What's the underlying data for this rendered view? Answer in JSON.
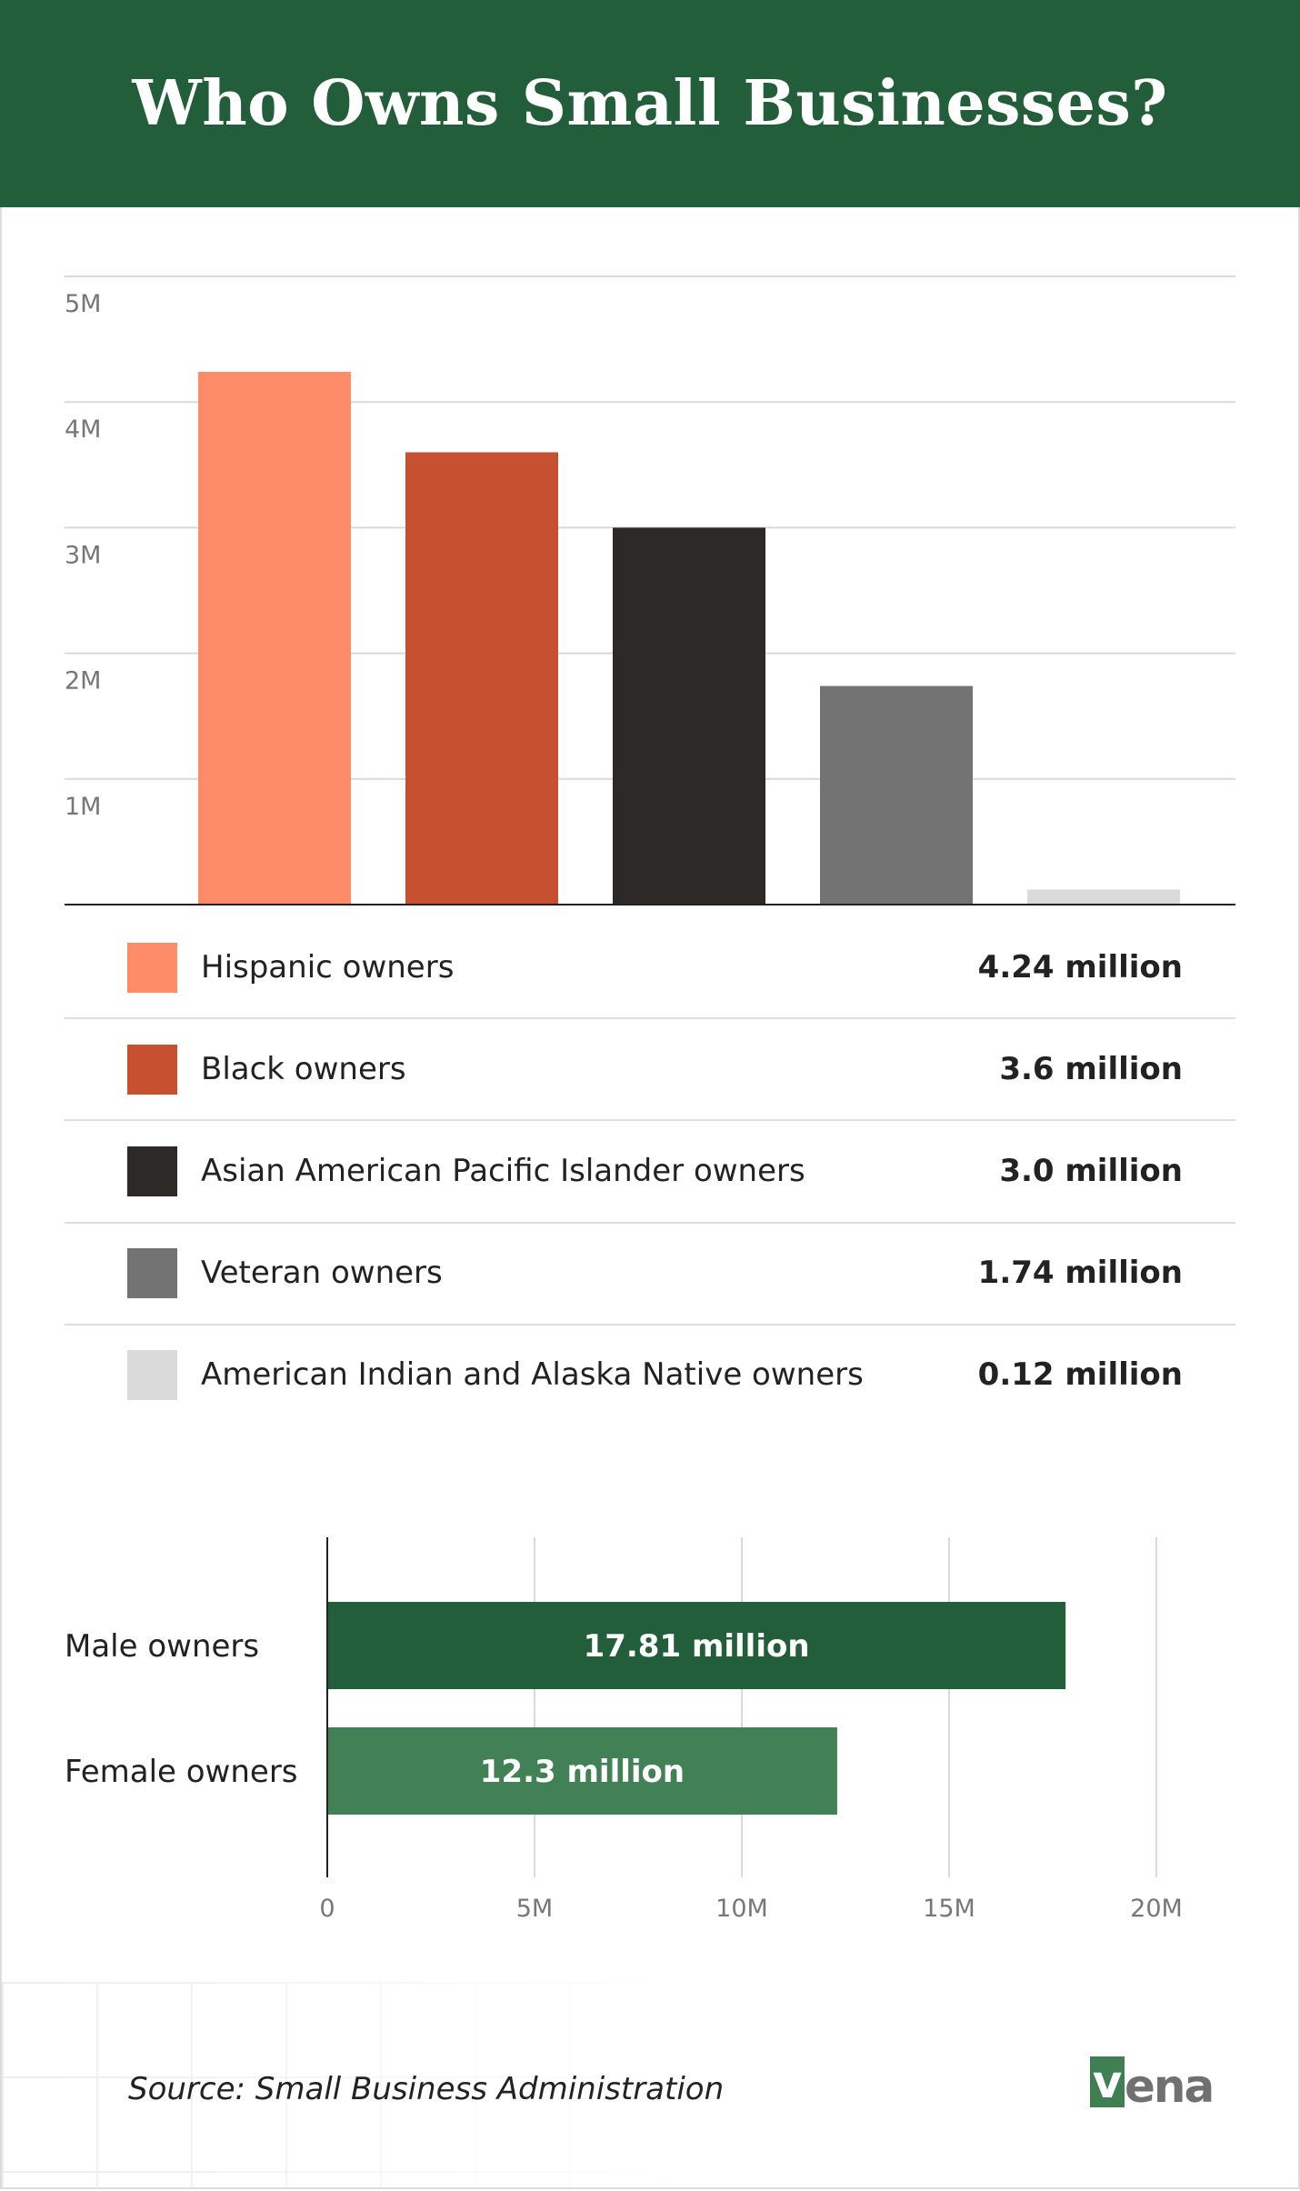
{
  "header": {
    "title": "Who Owns Small Businesses?"
  },
  "chart_data": [
    {
      "type": "bar",
      "title": "",
      "categories": [
        "Hispanic owners",
        "Black owners",
        "Asian American Pacific Islander owners",
        "Veteran owners",
        "American Indian and Alaska Native owners"
      ],
      "values": [
        4.24,
        3.6,
        3.0,
        1.74,
        0.12
      ],
      "value_labels": [
        "4.24 million",
        "3.6 million",
        "3.0 million",
        "1.74 million",
        "0.12 million"
      ],
      "colors": [
        "#ff8c69",
        "#c65030",
        "#2d2926",
        "#737373",
        "#dadada"
      ],
      "ylim": [
        0,
        5
      ],
      "yticks": [
        1,
        2,
        3,
        4,
        5
      ],
      "ytick_labels": [
        "1M",
        "2M",
        "3M",
        "4M",
        "5M"
      ],
      "unit": "million",
      "grid": true,
      "legend": "bottom"
    },
    {
      "type": "bar",
      "orientation": "horizontal",
      "categories": [
        "Male owners",
        "Female owners"
      ],
      "values": [
        17.81,
        12.3
      ],
      "value_labels": [
        "17.81 million",
        "12.3 million"
      ],
      "colors": [
        "#235e3a",
        "#428155"
      ],
      "xlim": [
        0,
        20
      ],
      "xticks": [
        0,
        5,
        10,
        15,
        20
      ],
      "xtick_labels": [
        "0",
        "5M",
        "10M",
        "15M",
        "20M"
      ],
      "unit": "million",
      "grid": true
    }
  ],
  "footer": {
    "source": "Source: Small Business Administration",
    "logo": "vena"
  }
}
